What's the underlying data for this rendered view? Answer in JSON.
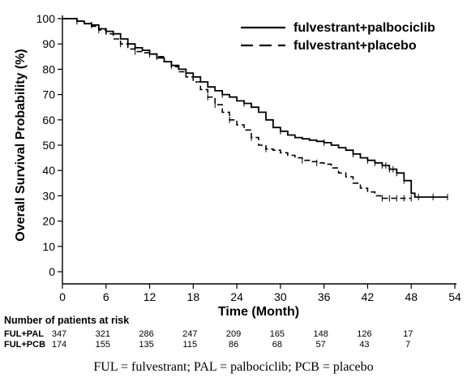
{
  "chart_data": {
    "type": "line",
    "xlabel": "Time (Month)",
    "ylabel": "Overall Survival Probability (%)",
    "xlim": [
      0,
      54
    ],
    "ylim": [
      0,
      100
    ],
    "x_ticks": [
      "0",
      "6",
      "12",
      "18",
      "24",
      "30",
      "36",
      "42",
      "48",
      "54"
    ],
    "y_ticks": [
      "0",
      "10",
      "20",
      "30",
      "40",
      "50",
      "60",
      "70",
      "80",
      "90",
      "100"
    ],
    "grid": false,
    "legend_position": "top-right",
    "series": [
      {
        "name": "fulvestrant+palbociclib",
        "style": "solid",
        "color": "#000000",
        "points": [
          [
            0,
            100
          ],
          [
            1,
            100
          ],
          [
            2,
            99
          ],
          [
            3,
            98
          ],
          [
            4,
            97.5
          ],
          [
            5,
            96
          ],
          [
            6,
            95
          ],
          [
            7,
            94
          ],
          [
            8,
            92
          ],
          [
            9,
            90
          ],
          [
            10,
            88.5
          ],
          [
            11,
            87.5
          ],
          [
            12,
            86
          ],
          [
            13,
            84.5
          ],
          [
            14,
            83
          ],
          [
            15,
            81.5
          ],
          [
            16,
            80
          ],
          [
            17,
            78.5
          ],
          [
            18,
            77
          ],
          [
            19,
            75
          ],
          [
            20,
            73
          ],
          [
            21,
            71.5
          ],
          [
            22,
            70
          ],
          [
            23,
            69
          ],
          [
            24,
            67.5
          ],
          [
            25,
            66.5
          ],
          [
            26,
            65
          ],
          [
            27,
            63
          ],
          [
            28,
            60
          ],
          [
            29,
            57
          ],
          [
            30,
            55.5
          ],
          [
            31,
            54
          ],
          [
            32,
            53
          ],
          [
            33,
            52.5
          ],
          [
            34,
            52
          ],
          [
            35,
            51.5
          ],
          [
            36,
            51
          ],
          [
            37,
            50
          ],
          [
            38,
            49
          ],
          [
            39,
            48
          ],
          [
            40,
            46.5
          ],
          [
            41,
            45
          ],
          [
            42,
            44
          ],
          [
            43,
            43
          ],
          [
            44,
            42
          ],
          [
            45,
            40.5
          ],
          [
            46,
            39
          ],
          [
            47,
            36
          ],
          [
            48,
            31
          ],
          [
            48.5,
            29.5
          ],
          [
            50,
            29.5
          ],
          [
            53,
            29.5
          ]
        ],
        "censor_x": [
          2,
          4,
          6,
          9,
          12,
          15,
          18,
          22,
          25,
          30,
          36,
          40,
          42,
          43,
          44,
          44.5,
          45,
          45.5,
          46,
          47,
          49,
          51,
          53
        ]
      },
      {
        "name": "fulvestrant+placebo",
        "style": "dashed",
        "color": "#000000",
        "points": [
          [
            0,
            100
          ],
          [
            1,
            100
          ],
          [
            2,
            99
          ],
          [
            3,
            98
          ],
          [
            4,
            97
          ],
          [
            5,
            95.5
          ],
          [
            6,
            94
          ],
          [
            7,
            92
          ],
          [
            8,
            90
          ],
          [
            9,
            88
          ],
          [
            10,
            87
          ],
          [
            11,
            86.5
          ],
          [
            12,
            86
          ],
          [
            13,
            85
          ],
          [
            14,
            83
          ],
          [
            15,
            81
          ],
          [
            16,
            79
          ],
          [
            17,
            77
          ],
          [
            18,
            75
          ],
          [
            19,
            72
          ],
          [
            20,
            69
          ],
          [
            21,
            66
          ],
          [
            22,
            63
          ],
          [
            23,
            60
          ],
          [
            24,
            58
          ],
          [
            25,
            56
          ],
          [
            26,
            53
          ],
          [
            27,
            50
          ],
          [
            28,
            48.5
          ],
          [
            29,
            48
          ],
          [
            30,
            47
          ],
          [
            31,
            46
          ],
          [
            32,
            45
          ],
          [
            33,
            44
          ],
          [
            34,
            43.5
          ],
          [
            35,
            43
          ],
          [
            36,
            42.5
          ],
          [
            37,
            41
          ],
          [
            38,
            39
          ],
          [
            39,
            37.5
          ],
          [
            40,
            35
          ],
          [
            41,
            33
          ],
          [
            42,
            31.5
          ],
          [
            43,
            30
          ],
          [
            44,
            29
          ],
          [
            45,
            29
          ],
          [
            48,
            29
          ]
        ],
        "censor_x": [
          2,
          5,
          8,
          10,
          13,
          20,
          21,
          23,
          26,
          28,
          33,
          35,
          44,
          45,
          46,
          47,
          48
        ]
      }
    ]
  },
  "risk_table": {
    "title": "Number of patients at risk",
    "time_points": [
      0,
      6,
      12,
      18,
      24,
      30,
      36,
      42,
      48
    ],
    "rows": [
      {
        "label": "FUL+PAL",
        "values": [
          "347",
          "321",
          "286",
          "247",
          "209",
          "165",
          "148",
          "126",
          "17"
        ]
      },
      {
        "label": "FUL+PCB",
        "values": [
          "174",
          "155",
          "135",
          "115",
          "86",
          "68",
          "57",
          "43",
          "7"
        ]
      }
    ]
  },
  "footnote": "FUL = fulvestrant; PAL = palbociclib; PCB = placebo"
}
